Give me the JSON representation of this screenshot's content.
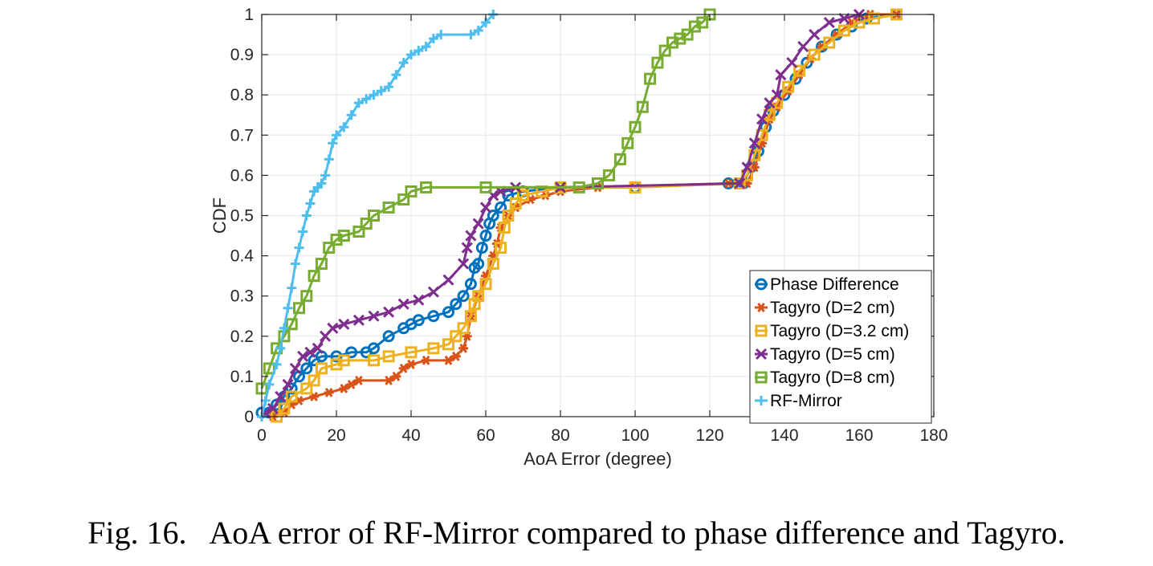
{
  "caption": "Fig. 16.   AoA error of RF-Mirror compared to phase difference and Tagyro.",
  "chart_data": {
    "type": "line",
    "xlabel": "AoA Error (degree)",
    "ylabel": "CDF",
    "xlim": [
      0,
      180
    ],
    "ylim": [
      0,
      1
    ],
    "xticks": [
      0,
      20,
      40,
      60,
      80,
      100,
      120,
      140,
      160,
      180
    ],
    "yticks": [
      0,
      0.1,
      0.2,
      0.3,
      0.4,
      0.5,
      0.6,
      0.7,
      0.8,
      0.9,
      1
    ],
    "grid": true,
    "legend_position": "bottom-right",
    "series": [
      {
        "name": "Phase Difference",
        "color": "#0072BD",
        "marker": "circle",
        "points": [
          [
            0,
            0.01
          ],
          [
            2,
            0.01
          ],
          [
            4,
            0.03
          ],
          [
            6,
            0.05
          ],
          [
            8,
            0.07
          ],
          [
            10,
            0.1
          ],
          [
            12,
            0.12
          ],
          [
            14,
            0.14
          ],
          [
            16,
            0.15
          ],
          [
            20,
            0.15
          ],
          [
            24,
            0.16
          ],
          [
            28,
            0.16
          ],
          [
            30,
            0.17
          ],
          [
            34,
            0.2
          ],
          [
            38,
            0.22
          ],
          [
            40,
            0.23
          ],
          [
            42,
            0.24
          ],
          [
            46,
            0.25
          ],
          [
            50,
            0.26
          ],
          [
            52,
            0.28
          ],
          [
            54,
            0.3
          ],
          [
            56,
            0.33
          ],
          [
            57,
            0.37
          ],
          [
            58,
            0.38
          ],
          [
            59,
            0.42
          ],
          [
            60,
            0.45
          ],
          [
            61,
            0.48
          ],
          [
            62,
            0.5
          ],
          [
            64,
            0.52
          ],
          [
            66,
            0.55
          ],
          [
            70,
            0.56
          ],
          [
            80,
            0.57
          ],
          [
            100,
            0.57
          ],
          [
            125,
            0.58
          ],
          [
            129,
            0.58
          ],
          [
            131,
            0.62
          ],
          [
            133,
            0.66
          ],
          [
            135,
            0.72
          ],
          [
            137,
            0.76
          ],
          [
            140,
            0.8
          ],
          [
            143,
            0.84
          ],
          [
            146,
            0.88
          ],
          [
            150,
            0.92
          ],
          [
            154,
            0.95
          ],
          [
            158,
            0.97
          ],
          [
            162,
            0.99
          ],
          [
            170,
            1
          ]
        ]
      },
      {
        "name": "Tagyro (D=2 cm)",
        "color": "#D95319",
        "marker": "asterisk",
        "points": [
          [
            3,
            0
          ],
          [
            6,
            0.01
          ],
          [
            8,
            0.03
          ],
          [
            10,
            0.04
          ],
          [
            14,
            0.05
          ],
          [
            18,
            0.06
          ],
          [
            22,
            0.07
          ],
          [
            24,
            0.08
          ],
          [
            26,
            0.09
          ],
          [
            34,
            0.09
          ],
          [
            36,
            0.1
          ],
          [
            38,
            0.12
          ],
          [
            40,
            0.13
          ],
          [
            44,
            0.14
          ],
          [
            50,
            0.14
          ],
          [
            52,
            0.15
          ],
          [
            54,
            0.17
          ],
          [
            55,
            0.2
          ],
          [
            56,
            0.25
          ],
          [
            58,
            0.3
          ],
          [
            60,
            0.35
          ],
          [
            62,
            0.4
          ],
          [
            63,
            0.43
          ],
          [
            64,
            0.47
          ],
          [
            66,
            0.5
          ],
          [
            68,
            0.52
          ],
          [
            72,
            0.54
          ],
          [
            76,
            0.55
          ],
          [
            80,
            0.56
          ],
          [
            90,
            0.57
          ],
          [
            125,
            0.58
          ],
          [
            130,
            0.58
          ],
          [
            132,
            0.62
          ],
          [
            134,
            0.68
          ],
          [
            136,
            0.74
          ],
          [
            138,
            0.77
          ],
          [
            141,
            0.81
          ],
          [
            144,
            0.85
          ],
          [
            147,
            0.89
          ],
          [
            150,
            0.92
          ],
          [
            154,
            0.95
          ],
          [
            158,
            0.98
          ],
          [
            163,
            1
          ],
          [
            170,
            1
          ]
        ]
      },
      {
        "name": "Tagyro (D=3.2 cm)",
        "color": "#EDB120",
        "marker": "square",
        "points": [
          [
            4,
            0
          ],
          [
            6,
            0.02
          ],
          [
            8,
            0.05
          ],
          [
            12,
            0.07
          ],
          [
            14,
            0.09
          ],
          [
            16,
            0.12
          ],
          [
            20,
            0.13
          ],
          [
            22,
            0.14
          ],
          [
            30,
            0.14
          ],
          [
            34,
            0.15
          ],
          [
            40,
            0.16
          ],
          [
            46,
            0.17
          ],
          [
            50,
            0.18
          ],
          [
            52,
            0.2
          ],
          [
            54,
            0.22
          ],
          [
            56,
            0.25
          ],
          [
            57,
            0.28
          ],
          [
            58,
            0.3
          ],
          [
            60,
            0.33
          ],
          [
            62,
            0.38
          ],
          [
            64,
            0.42
          ],
          [
            65,
            0.47
          ],
          [
            66,
            0.5
          ],
          [
            68,
            0.53
          ],
          [
            70,
            0.55
          ],
          [
            75,
            0.56
          ],
          [
            80,
            0.57
          ],
          [
            100,
            0.57
          ],
          [
            128,
            0.58
          ],
          [
            130,
            0.6
          ],
          [
            132,
            0.65
          ],
          [
            134,
            0.7
          ],
          [
            136,
            0.75
          ],
          [
            138,
            0.78
          ],
          [
            141,
            0.82
          ],
          [
            144,
            0.86
          ],
          [
            148,
            0.9
          ],
          [
            152,
            0.93
          ],
          [
            156,
            0.96
          ],
          [
            160,
            0.98
          ],
          [
            164,
            0.99
          ],
          [
            170,
            1
          ]
        ]
      },
      {
        "name": "Tagyro (D=5 cm)",
        "color": "#7E2F8E",
        "marker": "cross",
        "points": [
          [
            1,
            0.01
          ],
          [
            3,
            0.02
          ],
          [
            5,
            0.05
          ],
          [
            7,
            0.08
          ],
          [
            9,
            0.12
          ],
          [
            11,
            0.15
          ],
          [
            13,
            0.16
          ],
          [
            15,
            0.17
          ],
          [
            17,
            0.2
          ],
          [
            19,
            0.22
          ],
          [
            22,
            0.23
          ],
          [
            26,
            0.24
          ],
          [
            30,
            0.25
          ],
          [
            34,
            0.26
          ],
          [
            38,
            0.28
          ],
          [
            42,
            0.29
          ],
          [
            46,
            0.31
          ],
          [
            50,
            0.34
          ],
          [
            54,
            0.38
          ],
          [
            55,
            0.42
          ],
          [
            56,
            0.45
          ],
          [
            58,
            0.48
          ],
          [
            60,
            0.52
          ],
          [
            62,
            0.55
          ],
          [
            64,
            0.56
          ],
          [
            68,
            0.57
          ],
          [
            80,
            0.57
          ],
          [
            128,
            0.58
          ],
          [
            130,
            0.62
          ],
          [
            132,
            0.68
          ],
          [
            134,
            0.74
          ],
          [
            136,
            0.78
          ],
          [
            138,
            0.8
          ],
          [
            139,
            0.85
          ],
          [
            142,
            0.88
          ],
          [
            145,
            0.92
          ],
          [
            148,
            0.95
          ],
          [
            152,
            0.98
          ],
          [
            156,
            0.99
          ],
          [
            160,
            1
          ]
        ]
      },
      {
        "name": "Tagyro (D=8 cm)",
        "color": "#77AC30",
        "marker": "square",
        "points": [
          [
            0,
            0.07
          ],
          [
            2,
            0.12
          ],
          [
            4,
            0.17
          ],
          [
            6,
            0.2
          ],
          [
            8,
            0.23
          ],
          [
            10,
            0.27
          ],
          [
            12,
            0.3
          ],
          [
            14,
            0.35
          ],
          [
            16,
            0.38
          ],
          [
            18,
            0.42
          ],
          [
            20,
            0.44
          ],
          [
            22,
            0.45
          ],
          [
            26,
            0.46
          ],
          [
            28,
            0.48
          ],
          [
            30,
            0.5
          ],
          [
            34,
            0.52
          ],
          [
            38,
            0.54
          ],
          [
            40,
            0.56
          ],
          [
            44,
            0.57
          ],
          [
            60,
            0.57
          ],
          [
            85,
            0.57
          ],
          [
            90,
            0.58
          ],
          [
            93,
            0.6
          ],
          [
            96,
            0.64
          ],
          [
            98,
            0.68
          ],
          [
            100,
            0.72
          ],
          [
            102,
            0.77
          ],
          [
            104,
            0.84
          ],
          [
            106,
            0.88
          ],
          [
            108,
            0.91
          ],
          [
            110,
            0.93
          ],
          [
            112,
            0.94
          ],
          [
            114,
            0.95
          ],
          [
            116,
            0.97
          ],
          [
            118,
            0.98
          ],
          [
            120,
            1
          ]
        ]
      },
      {
        "name": "RF-Mirror",
        "color": "#4DBEEE",
        "marker": "plus",
        "points": [
          [
            0,
            0
          ],
          [
            1,
            0.04
          ],
          [
            2,
            0.08
          ],
          [
            4,
            0.13
          ],
          [
            5,
            0.17
          ],
          [
            6,
            0.22
          ],
          [
            7,
            0.27
          ],
          [
            8,
            0.32
          ],
          [
            9,
            0.38
          ],
          [
            10,
            0.42
          ],
          [
            11,
            0.46
          ],
          [
            12,
            0.5
          ],
          [
            13,
            0.53
          ],
          [
            14,
            0.56
          ],
          [
            15,
            0.57
          ],
          [
            16,
            0.58
          ],
          [
            17,
            0.6
          ],
          [
            18,
            0.64
          ],
          [
            19,
            0.68
          ],
          [
            20,
            0.7
          ],
          [
            22,
            0.72
          ],
          [
            24,
            0.75
          ],
          [
            26,
            0.78
          ],
          [
            28,
            0.79
          ],
          [
            30,
            0.8
          ],
          [
            32,
            0.81
          ],
          [
            34,
            0.82
          ],
          [
            36,
            0.85
          ],
          [
            38,
            0.88
          ],
          [
            40,
            0.9
          ],
          [
            42,
            0.91
          ],
          [
            44,
            0.92
          ],
          [
            46,
            0.94
          ],
          [
            48,
            0.95
          ],
          [
            56,
            0.95
          ],
          [
            58,
            0.96
          ],
          [
            60,
            0.98
          ],
          [
            62,
            1
          ]
        ]
      }
    ]
  }
}
